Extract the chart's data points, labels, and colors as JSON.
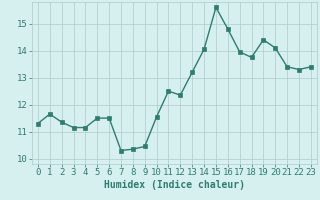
{
  "x": [
    0,
    1,
    2,
    3,
    4,
    5,
    6,
    7,
    8,
    9,
    10,
    11,
    12,
    13,
    14,
    15,
    16,
    17,
    18,
    19,
    20,
    21,
    22,
    23
  ],
  "y": [
    11.3,
    11.65,
    11.35,
    11.15,
    11.15,
    11.5,
    11.5,
    10.3,
    10.35,
    10.45,
    11.55,
    12.5,
    12.35,
    13.2,
    14.05,
    15.6,
    14.8,
    13.95,
    13.75,
    14.4,
    14.1,
    13.4,
    13.3,
    13.4
  ],
  "line_color": "#2e7d6e",
  "marker_color": "#2e7d6e",
  "bg_color": "#d6f0f0",
  "grid_color": "#b0c8c8",
  "xlabel": "Humidex (Indice chaleur)",
  "xlim": [
    -0.5,
    23.5
  ],
  "ylim": [
    9.8,
    15.8
  ],
  "yticks": [
    10,
    11,
    12,
    13,
    14,
    15
  ],
  "xticks": [
    0,
    1,
    2,
    3,
    4,
    5,
    6,
    7,
    8,
    9,
    10,
    11,
    12,
    13,
    14,
    15,
    16,
    17,
    18,
    19,
    20,
    21,
    22,
    23
  ],
  "tick_color": "#2e7d6e",
  "xlabel_fontsize": 7,
  "tick_fontsize": 6.5,
  "linewidth": 1.0,
  "markersize": 2.5
}
